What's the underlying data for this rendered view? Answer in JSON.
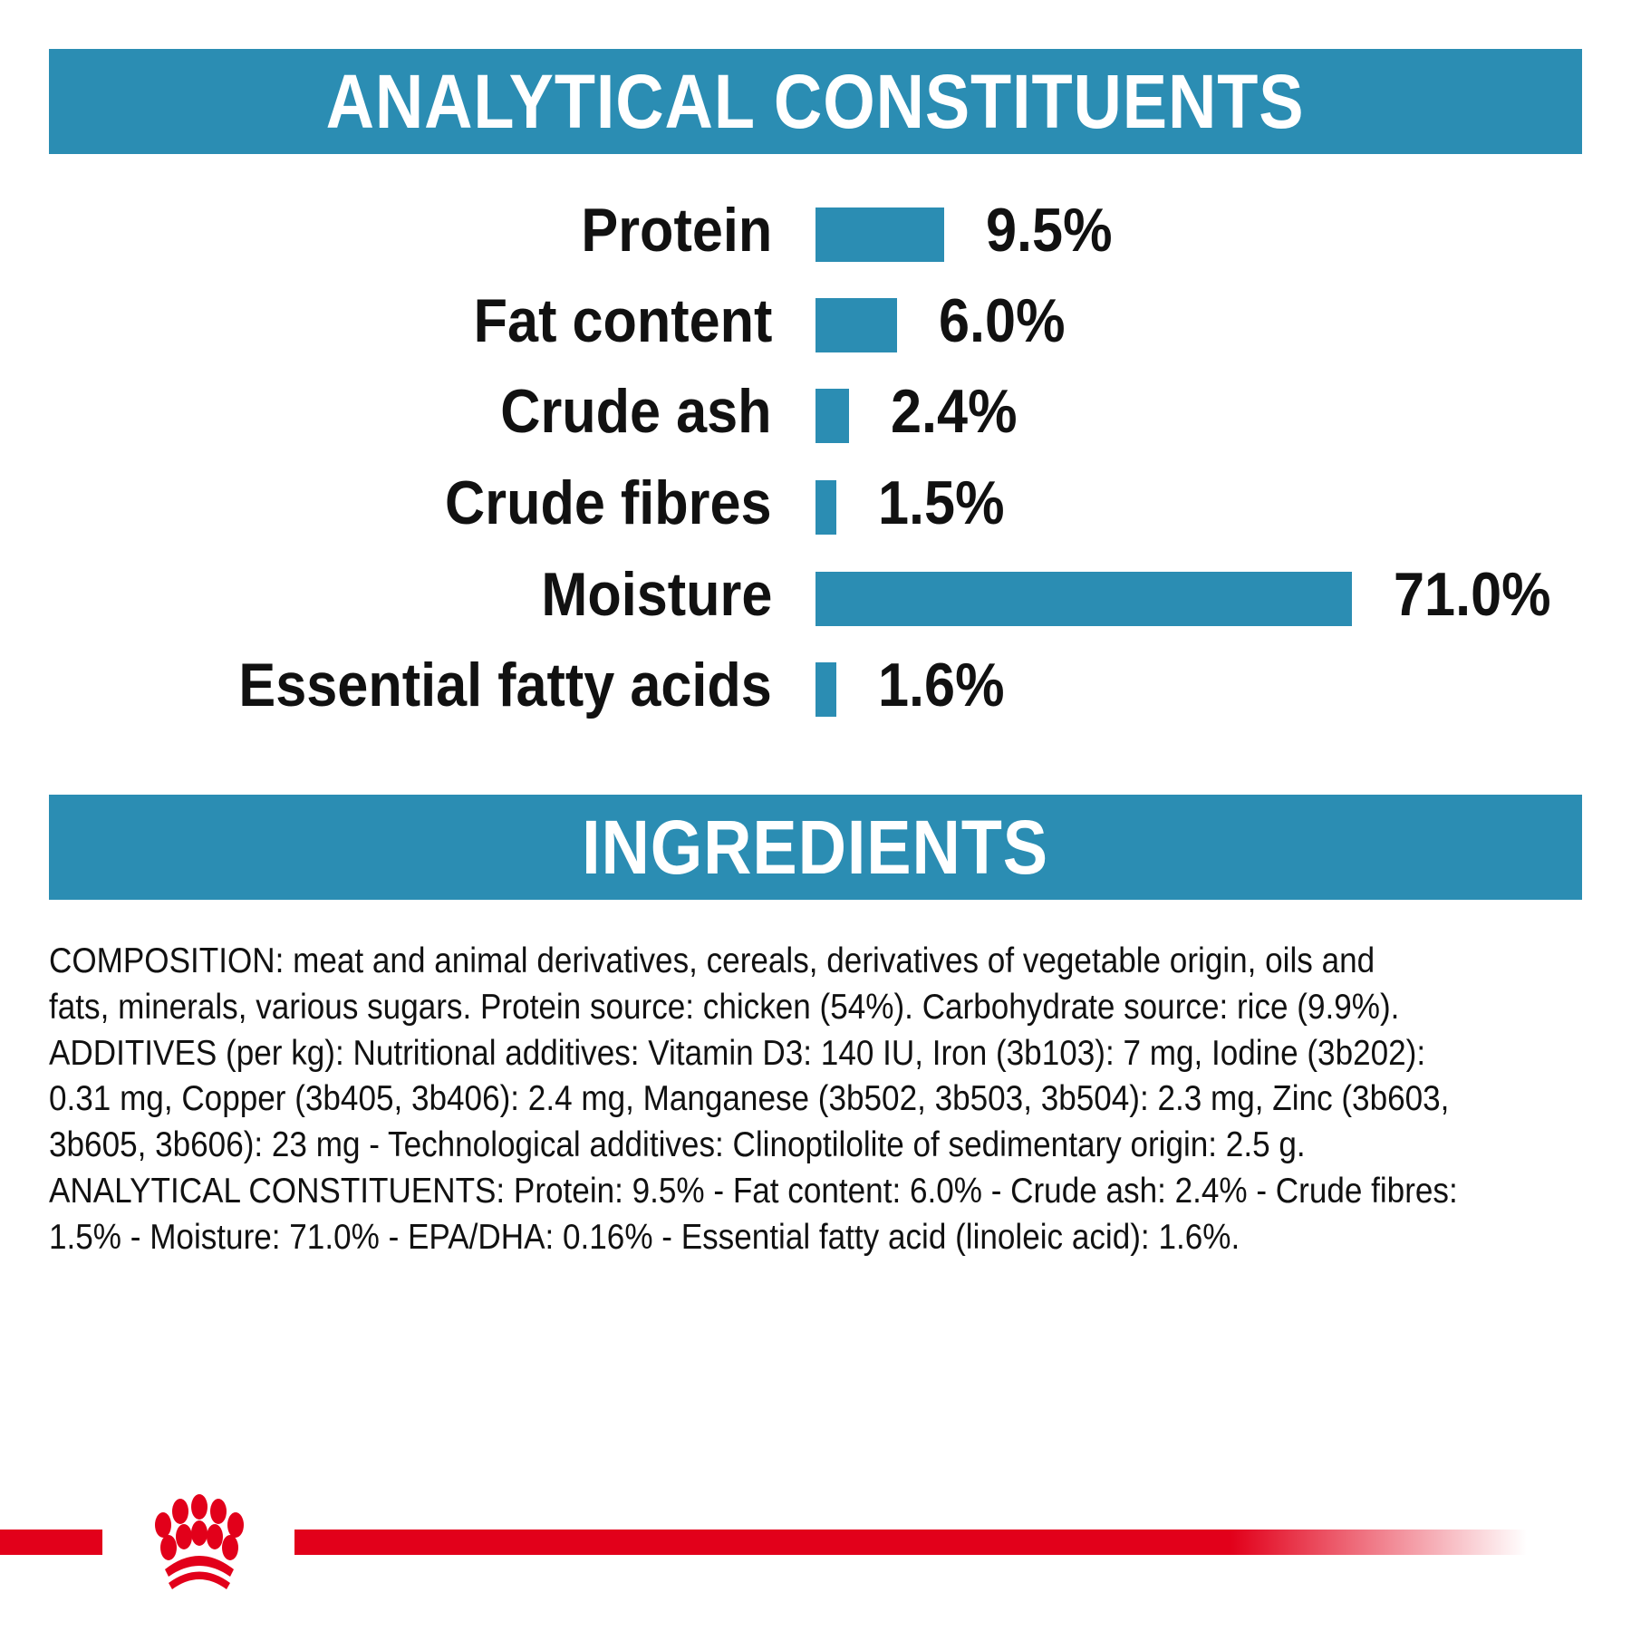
{
  "analytical": {
    "title": "ANALYTICAL CONSTITUENTS",
    "bar_color": "#2b8db3",
    "rows": [
      {
        "label": "Protein",
        "value": 9.5,
        "display": "9.5%"
      },
      {
        "label": "Fat content",
        "value": 6.0,
        "display": "6.0%"
      },
      {
        "label": "Crude ash",
        "value": 2.4,
        "display": "2.4%"
      },
      {
        "label": "Crude fibres",
        "value": 1.5,
        "display": "1.5%"
      },
      {
        "label": "Moisture",
        "value": 71.0,
        "display": "71.0%"
      },
      {
        "label": "Essential fatty acids",
        "value": 1.6,
        "display": "1.6%"
      }
    ]
  },
  "ingredients": {
    "title": "INGREDIENTS",
    "lines": [
      "COMPOSITION: meat and animal derivatives, cereals, derivatives of vegetable origin, oils and",
      "fats, minerals, various sugars. Protein source: chicken (54%). Carbohydrate source: rice (9.9%).",
      "ADDITIVES (per kg): Nutritional additives: Vitamin D3: 140 IU, Iron (3b103): 7 mg, Iodine (3b202):",
      "0.31 mg, Copper (3b405, 3b406): 2.4 mg, Manganese (3b502, 3b503, 3b504): 2.3 mg, Zinc (3b603,",
      "3b605, 3b606): 23 mg - Technological additives: Clinoptilolite of sedimentary origin: 2.5 g.",
      "ANALYTICAL CONSTITUENTS: Protein: 9.5% - Fat content: 6.0% - Crude ash: 2.4% - Crude fibres:",
      "1.5% - Moisture: 71.0% - EPA/DHA: 0.16% - Essential fatty acid (linoleic acid): 1.6%."
    ]
  },
  "footer": {
    "logo": "royal-canin-crown-logo",
    "brand_color": "#e2001a"
  }
}
